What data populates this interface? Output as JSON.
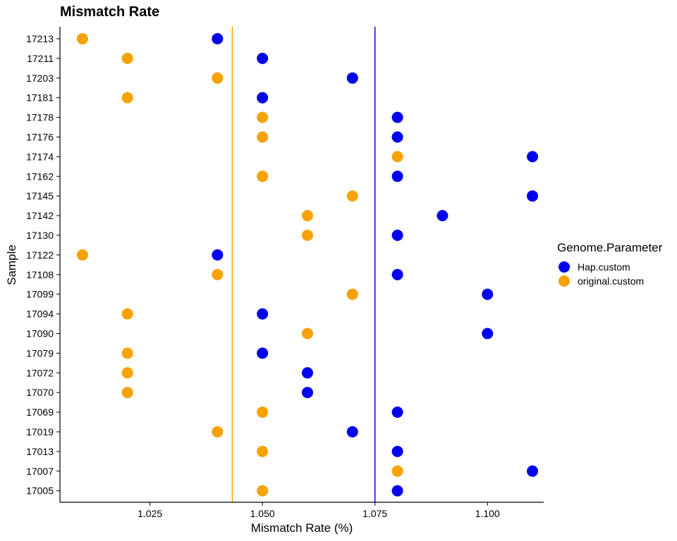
{
  "chart_data": {
    "type": "scatter",
    "title": "Mismatch Rate",
    "xlabel": "Mismatch Rate (%)",
    "ylabel": "Sample",
    "xlim": [
      1.005,
      1.1125
    ],
    "x_ticks": [
      1.025,
      1.05,
      1.075,
      1.1
    ],
    "x_tick_labels": [
      "1.025",
      "1.050",
      "1.075",
      "1.100"
    ],
    "grid": false,
    "legend": {
      "title": "Genome.Parameter",
      "position": "right"
    },
    "categories": [
      "17213",
      "17211",
      "17203",
      "17181",
      "17178",
      "17176",
      "17174",
      "17162",
      "17145",
      "17142",
      "17130",
      "17122",
      "17108",
      "17099",
      "17094",
      "17090",
      "17079",
      "17072",
      "17070",
      "17069",
      "17019",
      "17013",
      "17007",
      "17005"
    ],
    "series": [
      {
        "name": "Hap.custom",
        "color": "#0000ee",
        "values": [
          1.04,
          1.05,
          1.07,
          1.05,
          1.08,
          1.08,
          1.11,
          1.08,
          1.11,
          1.09,
          1.08,
          1.04,
          1.08,
          1.1,
          1.05,
          1.1,
          1.05,
          1.06,
          1.06,
          1.08,
          1.07,
          1.08,
          1.11,
          1.08
        ]
      },
      {
        "name": "original.custom",
        "color": "#f8a200",
        "values": [
          1.01,
          1.02,
          1.04,
          1.02,
          1.05,
          1.05,
          1.08,
          1.05,
          1.07,
          1.06,
          1.06,
          1.01,
          1.04,
          1.07,
          1.02,
          1.06,
          1.02,
          1.02,
          1.02,
          1.05,
          1.04,
          1.05,
          1.08,
          1.05
        ]
      }
    ],
    "reference_lines": [
      {
        "series": "original.custom",
        "x": 1.0433,
        "color": "#f8a200"
      },
      {
        "series": "Hap.custom",
        "x": 1.075,
        "color": "#0000ee"
      }
    ]
  }
}
